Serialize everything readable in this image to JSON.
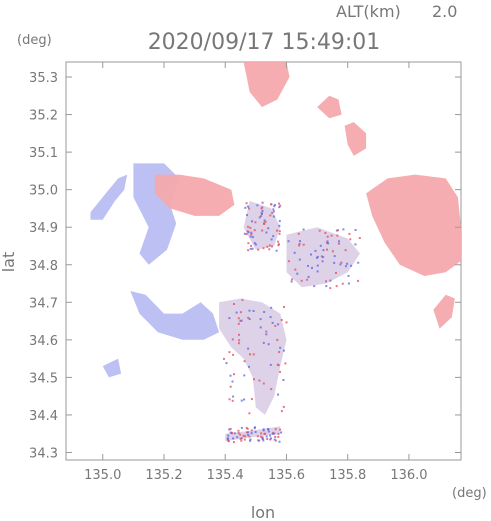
{
  "chart_data": {
    "type": "heatmap",
    "title": "2020/09/17 15:49:01",
    "altitude_label": "ALT(km)",
    "altitude_value": "2.0",
    "xlabel": "lon",
    "ylabel": "lat",
    "x_unit": "(deg)",
    "y_unit": "(deg)",
    "xlim": [
      134.88,
      136.17
    ],
    "ylim": [
      34.28,
      35.34
    ],
    "xticks": [
      "135.0",
      "135.2",
      "135.4",
      "135.6",
      "135.8",
      "136.0"
    ],
    "yticks": [
      "34.3",
      "34.4",
      "34.5",
      "34.6",
      "34.7",
      "34.8",
      "34.9",
      "35.0",
      "35.1",
      "35.2",
      "35.3"
    ],
    "grid": false,
    "colors": {
      "positive": "#f4a9ad",
      "negative": "#b9bdf2",
      "strong_positive": "#e04a5a",
      "strong_negative": "#5a63e0",
      "axis": "#999999",
      "text": "#777777"
    },
    "regions": [
      {
        "sign": "negative",
        "points": [
          [
            134.96,
            34.94
          ],
          [
            135.01,
            34.99
          ],
          [
            135.05,
            35.03
          ],
          [
            135.08,
            35.04
          ],
          [
            135.07,
            35.0
          ],
          [
            135.04,
            34.97
          ],
          [
            135.0,
            34.92
          ],
          [
            134.96,
            34.92
          ]
        ]
      },
      {
        "sign": "negative",
        "points": [
          [
            135.1,
            35.07
          ],
          [
            135.2,
            35.07
          ],
          [
            135.25,
            35.03
          ],
          [
            135.22,
            34.96
          ],
          [
            135.24,
            34.91
          ],
          [
            135.21,
            34.84
          ],
          [
            135.15,
            34.8
          ],
          [
            135.12,
            34.83
          ],
          [
            135.15,
            34.9
          ],
          [
            135.1,
            34.98
          ]
        ]
      },
      {
        "sign": "positive",
        "points": [
          [
            135.17,
            35.04
          ],
          [
            135.25,
            35.04
          ],
          [
            135.33,
            35.03
          ],
          [
            135.42,
            35.0
          ],
          [
            135.43,
            34.96
          ],
          [
            135.38,
            34.93
          ],
          [
            135.3,
            34.93
          ],
          [
            135.22,
            34.95
          ],
          [
            135.17,
            34.99
          ]
        ]
      },
      {
        "sign": "positive",
        "points": [
          [
            135.46,
            35.34
          ],
          [
            135.6,
            35.34
          ],
          [
            135.61,
            35.3
          ],
          [
            135.57,
            35.24
          ],
          [
            135.52,
            35.22
          ],
          [
            135.48,
            35.26
          ]
        ]
      },
      {
        "sign": "positive",
        "points": [
          [
            135.7,
            35.22
          ],
          [
            135.74,
            35.25
          ],
          [
            135.77,
            35.24
          ],
          [
            135.78,
            35.2
          ],
          [
            135.74,
            35.19
          ]
        ]
      },
      {
        "sign": "positive",
        "points": [
          [
            135.79,
            35.17
          ],
          [
            135.82,
            35.18
          ],
          [
            135.86,
            35.15
          ],
          [
            135.86,
            35.11
          ],
          [
            135.82,
            35.09
          ],
          [
            135.8,
            35.12
          ]
        ]
      },
      {
        "sign": "positive",
        "points": [
          [
            135.93,
            35.03
          ],
          [
            136.02,
            35.04
          ],
          [
            136.12,
            35.03
          ],
          [
            136.16,
            34.98
          ],
          [
            136.17,
            34.9
          ],
          [
            136.17,
            34.81
          ],
          [
            136.12,
            34.78
          ],
          [
            136.05,
            34.77
          ],
          [
            135.97,
            34.8
          ],
          [
            135.92,
            34.86
          ],
          [
            135.88,
            34.93
          ],
          [
            135.86,
            34.99
          ]
        ]
      },
      {
        "sign": "positive",
        "points": [
          [
            136.08,
            34.68
          ],
          [
            136.12,
            34.72
          ],
          [
            136.15,
            34.71
          ],
          [
            136.14,
            34.66
          ],
          [
            136.1,
            34.63
          ]
        ]
      },
      {
        "sign": "negative",
        "points": [
          [
            135.09,
            34.73
          ],
          [
            135.14,
            34.72
          ],
          [
            135.2,
            34.67
          ],
          [
            135.26,
            34.67
          ],
          [
            135.32,
            34.7
          ],
          [
            135.36,
            34.67
          ],
          [
            135.38,
            34.62
          ],
          [
            135.33,
            34.6
          ],
          [
            135.26,
            34.6
          ],
          [
            135.18,
            34.62
          ],
          [
            135.12,
            34.67
          ]
        ]
      },
      {
        "sign": "mixed",
        "points": [
          [
            135.38,
            34.7
          ],
          [
            135.45,
            34.71
          ],
          [
            135.52,
            34.7
          ],
          [
            135.58,
            34.67
          ],
          [
            135.6,
            34.6
          ],
          [
            135.58,
            34.53
          ],
          [
            135.56,
            34.45
          ],
          [
            135.53,
            34.4
          ],
          [
            135.5,
            34.42
          ],
          [
            135.49,
            34.5
          ],
          [
            135.46,
            34.55
          ],
          [
            135.42,
            34.58
          ],
          [
            135.38,
            34.63
          ]
        ]
      },
      {
        "sign": "mixed",
        "points": [
          [
            135.6,
            34.88
          ],
          [
            135.7,
            34.9
          ],
          [
            135.8,
            34.87
          ],
          [
            135.84,
            34.83
          ],
          [
            135.8,
            34.78
          ],
          [
            135.73,
            34.75
          ],
          [
            135.65,
            34.74
          ],
          [
            135.6,
            34.78
          ]
        ]
      },
      {
        "sign": "mixed",
        "points": [
          [
            135.48,
            34.97
          ],
          [
            135.55,
            34.95
          ],
          [
            135.58,
            34.9
          ],
          [
            135.56,
            34.85
          ],
          [
            135.5,
            34.84
          ],
          [
            135.46,
            34.9
          ]
        ]
      },
      {
        "sign": "negative",
        "points": [
          [
            135.0,
            34.53
          ],
          [
            135.05,
            34.55
          ],
          [
            135.06,
            34.51
          ],
          [
            135.02,
            34.5
          ]
        ]
      },
      {
        "sign": "mixed",
        "points": [
          [
            135.4,
            34.35
          ],
          [
            135.5,
            34.36
          ],
          [
            135.58,
            34.37
          ],
          [
            135.58,
            34.35
          ],
          [
            135.48,
            34.34
          ],
          [
            135.4,
            34.33
          ]
        ]
      }
    ]
  }
}
